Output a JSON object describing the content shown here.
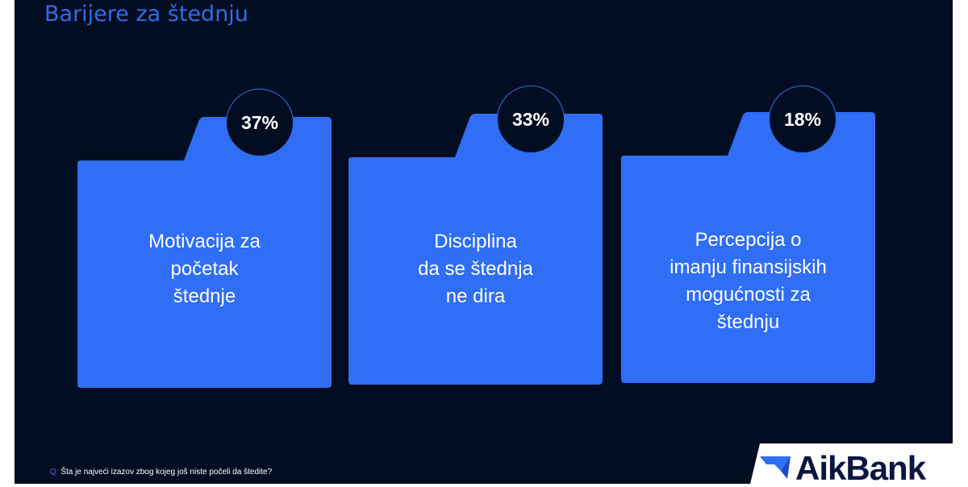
{
  "title": "Barijere za štednju",
  "cards": [
    {
      "percent": "37%",
      "lines": [
        "Motivacija za",
        "početak",
        "štednje"
      ]
    },
    {
      "percent": "33%",
      "lines": [
        "Disciplina",
        "da se štednja",
        "ne dira"
      ]
    },
    {
      "percent": "18%",
      "lines": [
        "Percepcija o",
        "imanju finansijskih",
        "mogućnosti za",
        "štednju"
      ]
    }
  ],
  "question": {
    "prefix": "Q:",
    "text": "Šta je najveći izazov zbog kojeg još niste počeli da štedite?"
  },
  "logo": {
    "text": "AikBank"
  },
  "colors": {
    "background": "#030d22",
    "accent": "#2f6ee8",
    "card": "#2f6ef5"
  }
}
